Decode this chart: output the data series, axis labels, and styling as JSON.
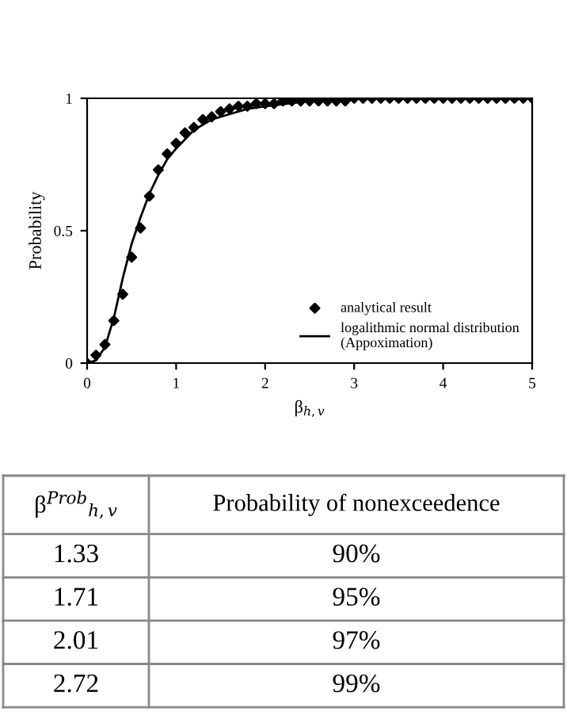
{
  "chart_data": {
    "type": "scatter",
    "xlabel": "β$_{h,v}$",
    "ylabel": "Probability",
    "xlim": [
      0,
      5
    ],
    "ylim": [
      0,
      1
    ],
    "xticks": [
      0,
      1,
      2,
      3,
      4,
      5
    ],
    "yticks": [
      0,
      0.5,
      1
    ],
    "grid": false,
    "legend": "bottom right",
    "series": [
      {
        "name": "analytical result",
        "marker": "diamond",
        "color": "#000000",
        "x": [
          0,
          0.1,
          0.2,
          0.3,
          0.4,
          0.5,
          0.6,
          0.7,
          0.8,
          0.9,
          1.0,
          1.1,
          1.2,
          1.3,
          1.4,
          1.5,
          1.6,
          1.7,
          1.8,
          1.9,
          2.0,
          2.1,
          2.2,
          2.3,
          2.4,
          2.5,
          2.6,
          2.7,
          2.8,
          2.9,
          3.0,
          3.1,
          3.2,
          3.3,
          3.4,
          3.5,
          3.6,
          3.7,
          3.8,
          3.9,
          4.0,
          4.1,
          4.2,
          4.3,
          4.4,
          4.5,
          4.6,
          4.7,
          4.8,
          4.9,
          5.0
        ],
        "values": [
          0,
          0.03,
          0.07,
          0.16,
          0.26,
          0.4,
          0.51,
          0.63,
          0.73,
          0.79,
          0.83,
          0.87,
          0.89,
          0.92,
          0.93,
          0.95,
          0.96,
          0.97,
          0.97,
          0.98,
          0.98,
          0.98,
          0.99,
          0.99,
          0.99,
          0.99,
          0.99,
          0.99,
          0.99,
          0.99,
          1,
          1,
          1,
          1,
          1,
          1,
          1,
          1,
          1,
          1,
          1,
          1,
          1,
          1,
          1,
          1,
          1,
          1,
          1,
          1,
          1
        ]
      },
      {
        "name": "logalithmic normal distribution\n(Appoximation)",
        "type": "line",
        "line_style": "solid",
        "color": "#000000",
        "x": [
          0,
          0.1,
          0.2,
          0.3,
          0.4,
          0.5,
          0.6,
          0.7,
          0.8,
          0.9,
          1.0,
          1.2,
          1.4,
          1.6,
          1.8,
          2.0,
          2.5,
          3.0,
          4.0,
          5.0
        ],
        "values": [
          0,
          0.01,
          0.06,
          0.17,
          0.32,
          0.45,
          0.55,
          0.64,
          0.71,
          0.77,
          0.81,
          0.88,
          0.92,
          0.94,
          0.96,
          0.97,
          0.99,
          1,
          1,
          1
        ]
      }
    ],
    "annotations": [
      "β$^{Prob}$$_{h,v}$",
      "Probability of nonexceedence",
      "1.33",
      "90%",
      "1.71",
      "95%",
      "2.01",
      "97%",
      "2.72",
      "99%"
    ]
  }
}
